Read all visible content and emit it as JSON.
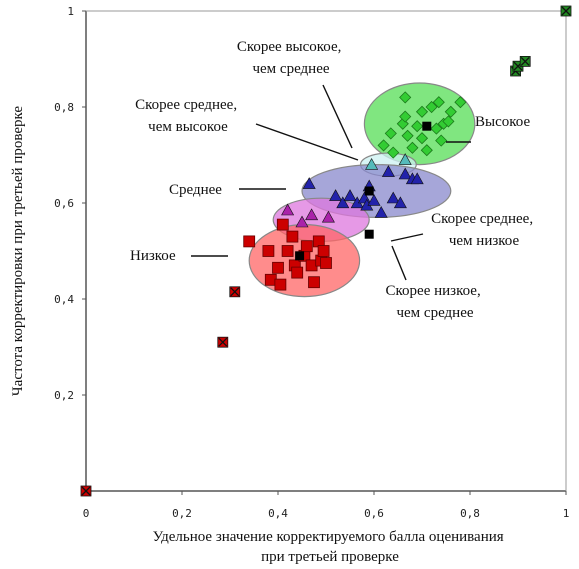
{
  "chart_data": {
    "type": "scatter",
    "title": "",
    "xlabel": "Удельное значение корректируемого балла оценивания\nпри третьей проверке",
    "ylabel": "Частота корректировки при третьей проверке",
    "xlim": [
      0,
      1
    ],
    "ylim": [
      0,
      1
    ],
    "x_ticks": [
      "0",
      "0,2",
      "0,4",
      "0,6",
      "0,8",
      "1"
    ],
    "y_ticks": [
      "0,2",
      "0,4",
      "0,6",
      "0,8",
      "1"
    ],
    "grid": false,
    "clusters": [
      {
        "key": "high",
        "label": "Высокое",
        "color": "#33cc33",
        "fill": "#55dd55",
        "marker": "diamond",
        "region": {
          "cx": 0.695,
          "cy": 0.765,
          "rx": 0.115,
          "ry": 0.085
        },
        "points": [
          [
            0.62,
            0.72
          ],
          [
            0.635,
            0.745
          ],
          [
            0.64,
            0.705
          ],
          [
            0.66,
            0.765
          ],
          [
            0.665,
            0.78
          ],
          [
            0.665,
            0.82
          ],
          [
            0.67,
            0.74
          ],
          [
            0.68,
            0.715
          ],
          [
            0.69,
            0.76
          ],
          [
            0.7,
            0.79
          ],
          [
            0.7,
            0.735
          ],
          [
            0.71,
            0.71
          ],
          [
            0.72,
            0.8
          ],
          [
            0.73,
            0.755
          ],
          [
            0.735,
            0.81
          ],
          [
            0.74,
            0.73
          ],
          [
            0.745,
            0.765
          ],
          [
            0.755,
            0.77
          ],
          [
            0.76,
            0.79
          ],
          [
            0.78,
            0.81
          ]
        ],
        "center": [
          0.71,
          0.76
        ]
      },
      {
        "key": "medium_high",
        "label": "Скорее высокое,\nчем среднее",
        "color": "#55bbbb",
        "fill": "#ccf2f2",
        "marker": "triangle",
        "region": {
          "cx": 0.63,
          "cy": 0.68,
          "rx": 0.058,
          "ry": 0.024
        },
        "points": [
          [
            0.595,
            0.68
          ],
          [
            0.665,
            0.69
          ]
        ],
        "center": null
      },
      {
        "key": "medium",
        "label": "Среднее",
        "color": "#2222aa",
        "fill": "#8888cc",
        "marker": "triangle",
        "region": {
          "cx": 0.605,
          "cy": 0.625,
          "rx": 0.155,
          "ry": 0.055
        },
        "points": [
          [
            0.465,
            0.64
          ],
          [
            0.52,
            0.615
          ],
          [
            0.535,
            0.6
          ],
          [
            0.55,
            0.615
          ],
          [
            0.565,
            0.6
          ],
          [
            0.58,
            0.61
          ],
          [
            0.585,
            0.595
          ],
          [
            0.59,
            0.635
          ],
          [
            0.6,
            0.605
          ],
          [
            0.615,
            0.58
          ],
          [
            0.63,
            0.665
          ],
          [
            0.64,
            0.61
          ],
          [
            0.655,
            0.6
          ],
          [
            0.665,
            0.66
          ],
          [
            0.68,
            0.65
          ],
          [
            0.69,
            0.65
          ]
        ],
        "center": [
          0.59,
          0.625
        ]
      },
      {
        "key": "medium_low",
        "label": "Скорее среднее,\nчем низкое",
        "color": "#aa22aa",
        "fill": "#dd77dd",
        "marker": "triangle",
        "region": {
          "cx": 0.49,
          "cy": 0.565,
          "rx": 0.1,
          "ry": 0.045
        },
        "points": [
          [
            0.42,
            0.585
          ],
          [
            0.45,
            0.56
          ],
          [
            0.47,
            0.575
          ],
          [
            0.505,
            0.57
          ]
        ],
        "center": [
          0.59,
          0.535
        ]
      },
      {
        "key": "low",
        "label": "Низкое",
        "color": "#cc0000",
        "fill": "#ff6666",
        "marker": "square",
        "region": {
          "cx": 0.455,
          "cy": 0.48,
          "rx": 0.115,
          "ry": 0.075
        },
        "points": [
          [
            0.34,
            0.52
          ],
          [
            0.38,
            0.5
          ],
          [
            0.385,
            0.44
          ],
          [
            0.4,
            0.465
          ],
          [
            0.405,
            0.43
          ],
          [
            0.41,
            0.555
          ],
          [
            0.42,
            0.5
          ],
          [
            0.43,
            0.53
          ],
          [
            0.435,
            0.47
          ],
          [
            0.44,
            0.455
          ],
          [
            0.455,
            0.49
          ],
          [
            0.46,
            0.51
          ],
          [
            0.47,
            0.47
          ],
          [
            0.475,
            0.435
          ],
          [
            0.485,
            0.52
          ],
          [
            0.49,
            0.48
          ],
          [
            0.495,
            0.5
          ],
          [
            0.5,
            0.475
          ]
        ],
        "center": [
          0.445,
          0.49
        ]
      }
    ],
    "outliers": [
      {
        "color": "#cc0000",
        "points": [
          [
            0.0,
            0.0
          ],
          [
            0.285,
            0.31
          ],
          [
            0.31,
            0.415
          ]
        ]
      },
      {
        "color": "#228822",
        "points": [
          [
            0.895,
            0.875
          ],
          [
            0.9,
            0.885
          ],
          [
            0.915,
            0.895
          ],
          [
            1.0,
            1.0
          ]
        ]
      }
    ],
    "annotations": {
      "medium_high_note": "Скорее среднее,\nчем высокое",
      "low_medium_note": "Скорее низкое,\nчем среднее"
    }
  }
}
